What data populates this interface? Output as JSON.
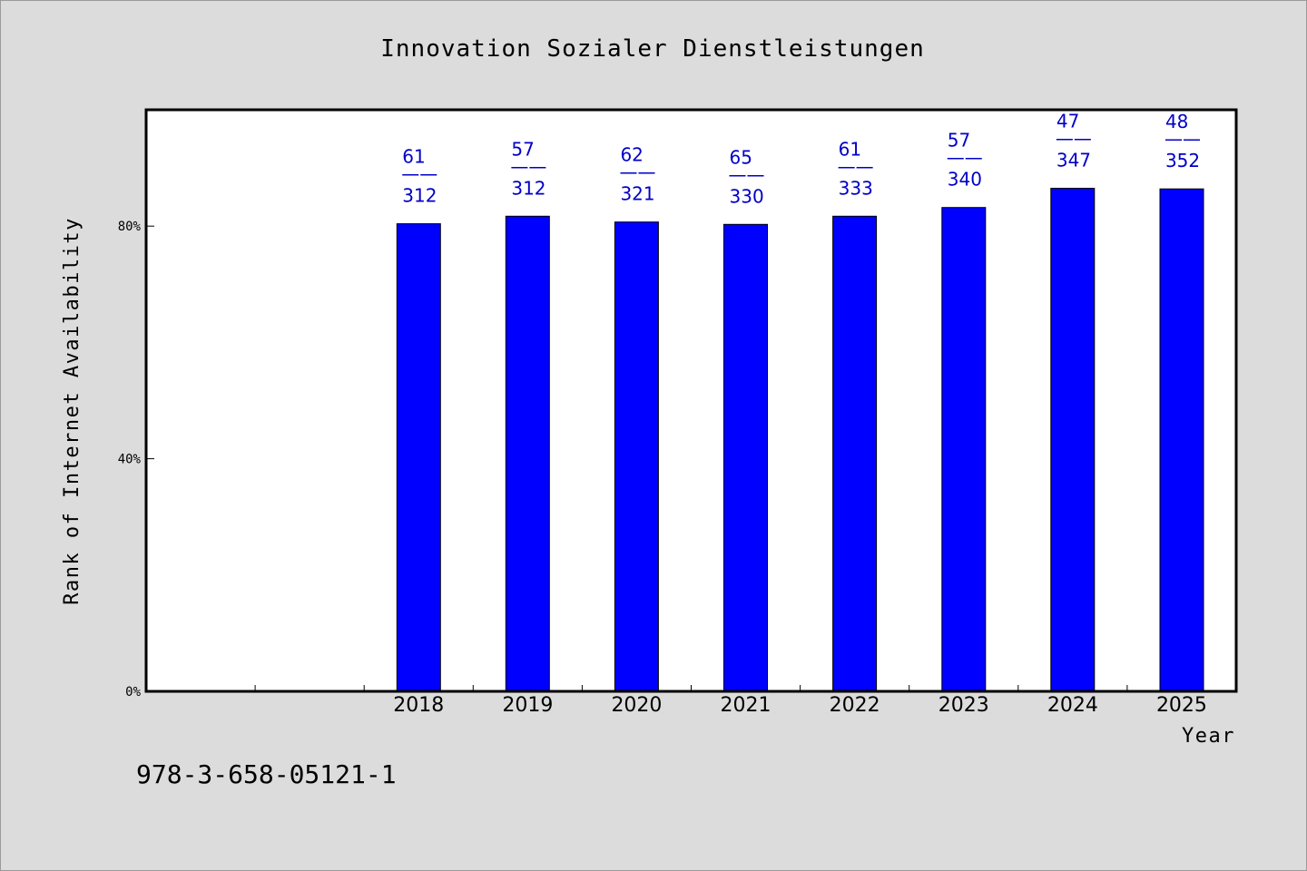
{
  "title": "Innovation Sozialer Dienstleistungen",
  "footer_text": "978-3-658-05121-1",
  "colors": {
    "background": "#dcdcdc",
    "plot_background": "#ffffff",
    "bar_fill": "#0000ff",
    "label_color": "#0000c8"
  },
  "chart_data": {
    "type": "bar",
    "title": "Innovation Sozialer Dienstleistungen",
    "xlabel": "Year",
    "ylabel": "Rank of Internet Availability",
    "categories": [
      "",
      "",
      "2018",
      "2019",
      "2020",
      "2021",
      "2022",
      "2023",
      "2024",
      "2025"
    ],
    "values": [
      null,
      null,
      80.4,
      81.7,
      80.7,
      80.3,
      81.7,
      83.2,
      86.5,
      86.4
    ],
    "ranks": [
      null,
      null,
      "61",
      "57",
      "62",
      "65",
      "61",
      "57",
      "47",
      "48"
    ],
    "totals": [
      null,
      null,
      "312",
      "312",
      "321",
      "330",
      "333",
      "340",
      "347",
      "352"
    ],
    "label_separator": "——",
    "yticks": [
      {
        "value": 0,
        "label": "0%"
      },
      {
        "value": 40,
        "label": "40%"
      },
      {
        "value": 80,
        "label": "80%"
      }
    ],
    "ylim": [
      0,
      100
    ],
    "grid": false
  }
}
